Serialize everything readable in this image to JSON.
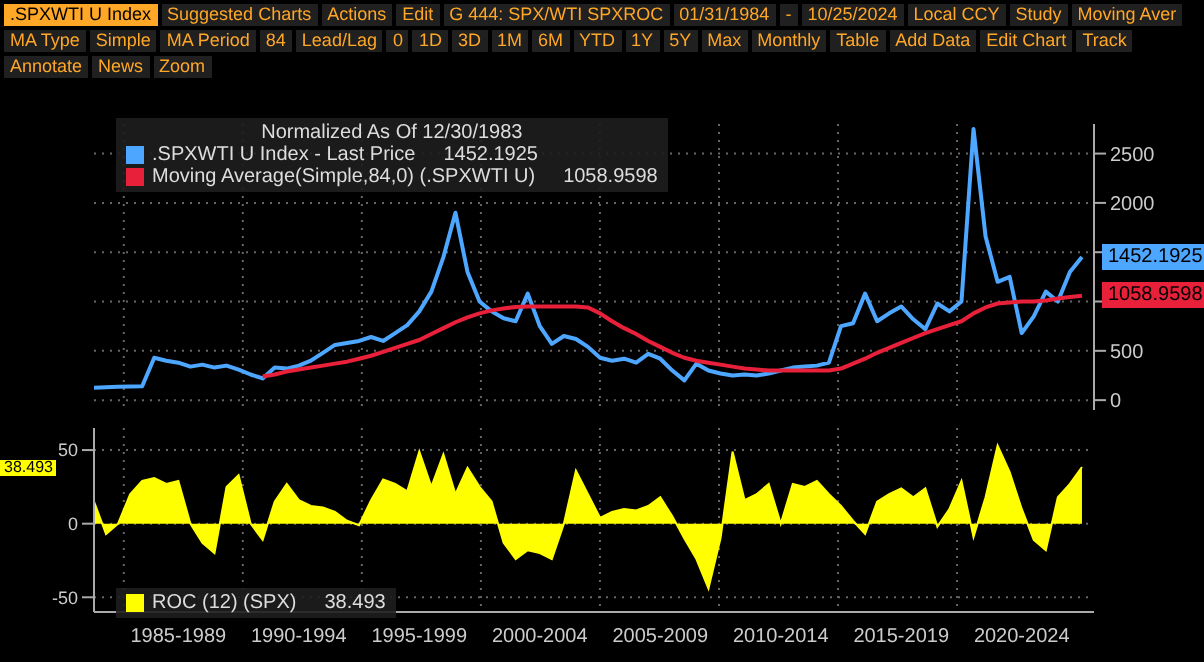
{
  "chart_data": [
    {
      "type": "line",
      "legend_title": "Normalized As Of 12/30/1983",
      "legend": "top left",
      "grid": true,
      "tick_labels": "y",
      "ylim": [
        -100,
        2800
      ],
      "yticks": [
        0,
        500,
        {
          "value": 1000,
          "label": null
        },
        {
          "value": 1500,
          "label": null
        },
        2000,
        2500
      ],
      "categories": [
        null,
        null,
        null,
        null,
        null,
        null,
        null,
        null,
        null,
        null,
        null,
        null,
        null,
        null,
        null,
        null,
        null,
        null,
        null,
        null,
        null,
        null,
        null,
        null,
        null,
        null,
        null,
        null,
        null,
        null,
        null,
        null,
        null,
        null,
        null,
        null,
        null,
        null,
        null,
        null,
        null,
        null,
        null,
        null,
        null,
        null,
        null,
        null,
        null,
        null,
        null,
        null,
        null,
        null,
        null,
        null,
        null,
        null,
        null,
        null,
        null,
        null,
        null,
        null,
        null,
        null,
        null,
        null,
        null,
        null,
        null,
        null,
        null,
        null,
        null,
        null,
        null,
        null,
        null,
        null,
        null,
        null,
        null,
        null
      ],
      "annotations": [
        ".SPXWTI U Index",
        "Suggested Charts",
        "Actions",
        "Edit",
        "G 444: SPX/WTI SPXROC",
        "01/31/1984",
        "-",
        "10/25/2024",
        "Local CCY",
        "Study",
        "Moving Aver",
        "MA Type",
        "Simple",
        "MA Period",
        "84",
        "Lead/Lag",
        "0",
        "1D",
        "3D",
        "1M",
        "6M",
        "YTD",
        "1Y",
        "5Y",
        "Max",
        "Monthly",
        "Table",
        "Add Data",
        "Edit Chart",
        "Track",
        "Annotate",
        "News",
        "Zoom"
      ],
      "series": [
        {
          "name": ".SPXWTI U Index - Last Price",
          "color": "#4da6ff",
          "values": [
            125,
            130,
            135,
            138,
            140,
            430,
            400,
            380,
            340,
            360,
            330,
            350,
            310,
            260,
            220,
            330,
            320,
            350,
            400,
            480,
            560,
            580,
            600,
            640,
            600,
            680,
            760,
            900,
            1100,
            1450,
            1900,
            1300,
            1000,
            900,
            830,
            800,
            1080,
            750,
            570,
            650,
            620,
            540,
            430,
            400,
            420,
            380,
            470,
            420,
            300,
            200,
            370,
            300,
            270,
            250,
            260,
            250,
            270,
            300,
            330,
            340,
            350,
            380,
            750,
            780,
            1080,
            800,
            880,
            950,
            820,
            720,
            980,
            900,
            1000,
            2750,
            1660,
            1200,
            1250,
            680,
            850,
            1100,
            1000,
            1300,
            1452.1925,
            null
          ],
          "value_labels": [
            null,
            null,
            null,
            null,
            null,
            null,
            null,
            null,
            null,
            null,
            null,
            null,
            null,
            null,
            null,
            null,
            null,
            null,
            null,
            null,
            null,
            null,
            null,
            null,
            null,
            null,
            null,
            null,
            null,
            null,
            null,
            null,
            null,
            null,
            null,
            null,
            null,
            null,
            null,
            null,
            null,
            null,
            null,
            null,
            null,
            null,
            null,
            null,
            null,
            null,
            null,
            null,
            null,
            null,
            null,
            null,
            null,
            null,
            null,
            null,
            null,
            null,
            null,
            null,
            null,
            null,
            null,
            null,
            null,
            null,
            null,
            null,
            null,
            null,
            null,
            null,
            null,
            null,
            null,
            null,
            null,
            null,
            "1452.1925",
            null
          ]
        },
        {
          "name": "Moving Average(Simple,84,0) (.SPXWTI U)",
          "color": "#e8203a",
          "values": [
            null,
            null,
            null,
            null,
            null,
            null,
            null,
            null,
            null,
            null,
            null,
            null,
            null,
            null,
            240,
            260,
            290,
            310,
            330,
            350,
            370,
            390,
            420,
            450,
            490,
            530,
            570,
            610,
            670,
            730,
            790,
            840,
            880,
            910,
            930,
            945,
            950,
            950,
            950,
            950,
            950,
            940,
            880,
            800,
            730,
            670,
            600,
            540,
            480,
            430,
            400,
            380,
            360,
            340,
            320,
            310,
            300,
            300,
            300,
            300,
            300,
            300,
            320,
            370,
            420,
            480,
            530,
            580,
            630,
            680,
            720,
            760,
            800,
            880,
            940,
            980,
            990,
            1000,
            1000,
            1010,
            1030,
            1045,
            1058.9598,
            null
          ],
          "value_labels": [
            null,
            null,
            null,
            null,
            null,
            null,
            null,
            null,
            null,
            null,
            null,
            null,
            null,
            null,
            null,
            null,
            null,
            null,
            null,
            null,
            null,
            null,
            null,
            null,
            null,
            null,
            null,
            null,
            null,
            null,
            null,
            null,
            null,
            null,
            null,
            null,
            null,
            null,
            null,
            null,
            null,
            null,
            null,
            null,
            null,
            null,
            null,
            null,
            null,
            null,
            null,
            null,
            null,
            null,
            null,
            null,
            null,
            null,
            null,
            null,
            null,
            null,
            null,
            null,
            null,
            null,
            null,
            null,
            null,
            null,
            null,
            null,
            null,
            null,
            null,
            null,
            null,
            null,
            null,
            null,
            null,
            null,
            "1058.9598",
            null
          ]
        }
      ]
    },
    {
      "type": "area",
      "legend": "bottom left",
      "grid": true,
      "ylim": [
        -60,
        65
      ],
      "yticks": [
        -50,
        0,
        50
      ],
      "annotations": [
        "38.493",
        "38.493"
      ],
      "categories": [
        null,
        null,
        null,
        null,
        null,
        null,
        null,
        "1985-1989",
        null,
        null,
        null,
        null,
        null,
        null,
        null,
        null,
        null,
        "1990-1994",
        null,
        null,
        null,
        null,
        null,
        null,
        null,
        null,
        null,
        "1995-1999",
        null,
        null,
        null,
        null,
        null,
        null,
        null,
        null,
        null,
        "2000-2004",
        null,
        null,
        null,
        null,
        null,
        null,
        null,
        null,
        null,
        "2005-2009",
        null,
        null,
        null,
        null,
        null,
        null,
        null,
        null,
        null,
        "2010-2014",
        null,
        null,
        null,
        null,
        null,
        null,
        null,
        null,
        null,
        "2015-2019",
        null,
        null,
        null,
        null,
        null,
        null,
        null,
        null,
        null,
        "2020-2024",
        null,
        null,
        null,
        null,
        null,
        null
      ],
      "series": [
        {
          "name": "ROC (12) (SPX)",
          "color": "#ffff00",
          "values": [
            15,
            -7,
            0,
            20,
            29,
            31,
            27,
            29,
            0,
            -13,
            -20,
            25,
            33,
            0,
            -11,
            15,
            27,
            16,
            12,
            11,
            8,
            2,
            -1,
            16,
            30,
            27,
            22,
            49,
            25,
            47,
            20,
            38,
            25,
            15,
            -13,
            -24,
            -18,
            -20,
            -24,
            0,
            36,
            20,
            4,
            8,
            10,
            9,
            12,
            18,
            5,
            -10,
            -24,
            -44,
            -10,
            49,
            16,
            20,
            27,
            0,
            27,
            25,
            29,
            20,
            12,
            2,
            -7,
            15,
            20,
            24,
            18,
            24,
            -2,
            10,
            29,
            -9,
            18,
            53,
            35,
            10,
            -11,
            -18,
            18,
            27,
            38.493,
            null
          ]
        }
      ]
    }
  ]
}
